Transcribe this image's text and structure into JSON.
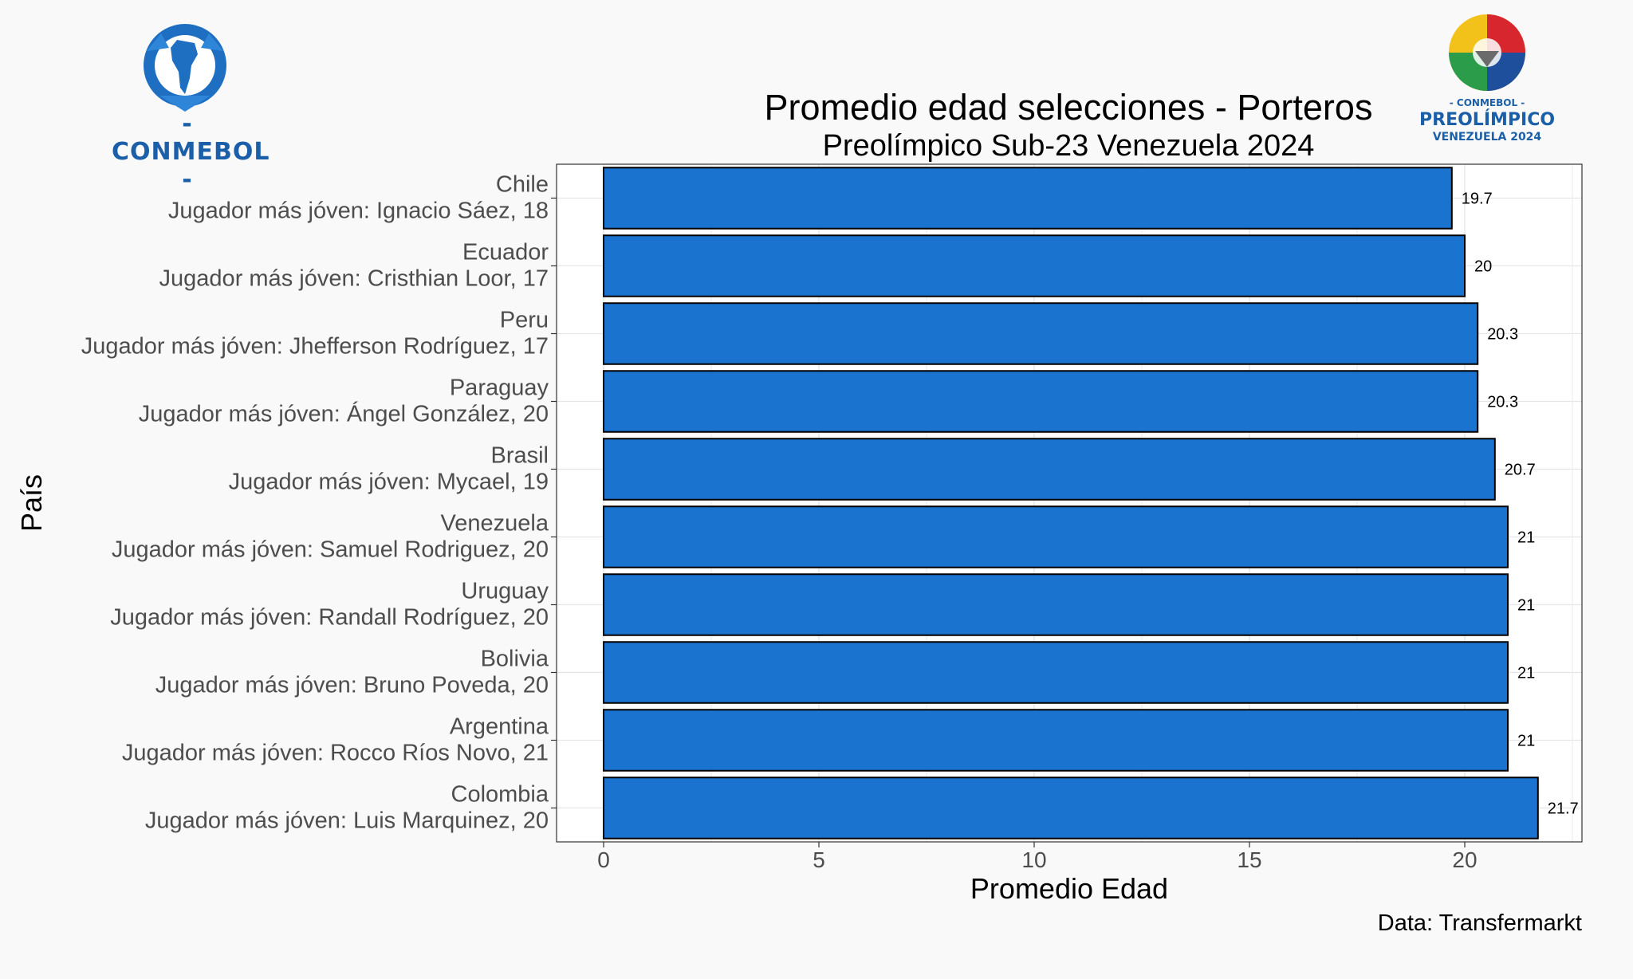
{
  "logos": {
    "left_text": "- CONMEBOL -",
    "right_top_text": "- CONMEBOL -",
    "right_main_text": "PREOLÍMPICO",
    "right_sub_text": "VENEZUELA 2024"
  },
  "colors": {
    "bar_fill": "#1a73cf",
    "bar_stroke": "#000000",
    "panel_bg": "#ffffff",
    "page_bg": "#f9f9f9",
    "grid": "#e6e6e6",
    "brand_blue": "#1b5fa8"
  },
  "chart_data": {
    "type": "bar",
    "orientation": "horizontal",
    "title": "Promedio edad selecciones - Porteros",
    "subtitle": "Preolímpico Sub-23 Venezuela 2024",
    "xlabel": "Promedio Edad",
    "ylabel": "País",
    "caption": "Data: Transfermarkt",
    "xlim": [
      0,
      22.8
    ],
    "xticks": [
      0,
      5,
      10,
      15,
      20
    ],
    "grid": true,
    "categories": [
      {
        "country": "Chile",
        "player": "Jugador más jóven: Ignacio Sáez, 18"
      },
      {
        "country": "Ecuador",
        "player": "Jugador más jóven: Cristhian Loor, 17"
      },
      {
        "country": "Peru",
        "player": "Jugador más jóven: Jhefferson Rodríguez, 17"
      },
      {
        "country": "Paraguay",
        "player": "Jugador más jóven: Ángel González, 20"
      },
      {
        "country": "Brasil",
        "player": "Jugador más jóven: Mycael, 19"
      },
      {
        "country": "Venezuela",
        "player": "Jugador más jóven: Samuel Rodriguez, 20"
      },
      {
        "country": "Uruguay",
        "player": "Jugador más jóven: Randall Rodríguez, 20"
      },
      {
        "country": "Bolivia",
        "player": "Jugador más jóven: Bruno Poveda, 20"
      },
      {
        "country": "Argentina",
        "player": "Jugador más jóven: Rocco Ríos Novo, 21"
      },
      {
        "country": "Colombia",
        "player": "Jugador más jóven: Luis Marquinez, 20"
      }
    ],
    "values": [
      19.7,
      20,
      20.3,
      20.3,
      20.7,
      21,
      21,
      21,
      21,
      21.7
    ],
    "value_labels": [
      "19.7",
      "20",
      "20.3",
      "20.3",
      "20.7",
      "21",
      "21",
      "21",
      "21",
      "21.7"
    ]
  }
}
